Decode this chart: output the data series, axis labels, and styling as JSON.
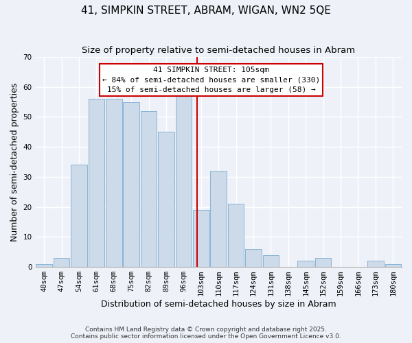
{
  "title": "41, SIMPKIN STREET, ABRAM, WIGAN, WN2 5QE",
  "subtitle": "Size of property relative to semi-detached houses in Abram",
  "xlabel": "Distribution of semi-detached houses by size in Abram",
  "ylabel": "Number of semi-detached properties",
  "bin_labels": [
    "40sqm",
    "47sqm",
    "54sqm",
    "61sqm",
    "68sqm",
    "75sqm",
    "82sqm",
    "89sqm",
    "96sqm",
    "103sqm",
    "110sqm",
    "117sqm",
    "124sqm",
    "131sqm",
    "138sqm",
    "145sqm",
    "152sqm",
    "159sqm",
    "166sqm",
    "173sqm",
    "180sqm"
  ],
  "bar_values": [
    1,
    3,
    34,
    56,
    56,
    55,
    52,
    45,
    57,
    19,
    32,
    21,
    6,
    4,
    0,
    2,
    3,
    0,
    0,
    2,
    1
  ],
  "bin_edges": [
    40,
    47,
    54,
    61,
    68,
    75,
    82,
    89,
    96,
    103,
    110,
    117,
    124,
    131,
    138,
    145,
    152,
    159,
    166,
    173,
    180
  ],
  "bar_color": "#ccdaea",
  "bar_edge_color": "#88b4d4",
  "vline_x": 105,
  "vline_color": "#cc0000",
  "annotation_title": "41 SIMPKIN STREET: 105sqm",
  "annotation_line1": "← 84% of semi-detached houses are smaller (330)",
  "annotation_line2": "15% of semi-detached houses are larger (58) →",
  "annotation_box_facecolor": "#ffffff",
  "annotation_box_edgecolor": "#cc0000",
  "ylim": [
    0,
    70
  ],
  "yticks": [
    0,
    10,
    20,
    30,
    40,
    50,
    60,
    70
  ],
  "footer1": "Contains HM Land Registry data © Crown copyright and database right 2025.",
  "footer2": "Contains public sector information licensed under the Open Government Licence v3.0.",
  "bg_color": "#eef2f8",
  "grid_color": "#ffffff",
  "title_fontsize": 11,
  "subtitle_fontsize": 9.5,
  "axis_label_fontsize": 9,
  "tick_fontsize": 7.5,
  "footer_fontsize": 6.5,
  "ann_fontsize": 8
}
